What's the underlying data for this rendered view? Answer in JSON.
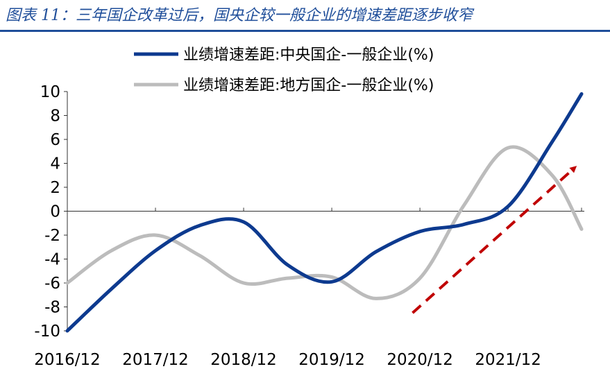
{
  "figure": {
    "title": "图表 11：三年国企改革过后，国央企较一般企业的增速差距逐步收窄"
  },
  "chart_data": {
    "type": "line",
    "title": "图表 11：三年国企改革过后，国央企较一般企业的增速差距逐步收窄",
    "xlabel": "",
    "ylabel": "",
    "x_ticks": [
      "2016/12",
      "2017/12",
      "2018/12",
      "2019/12",
      "2020/12",
      "2021/12"
    ],
    "x_range": [
      "2016/12",
      "2022/10"
    ],
    "ylim": [
      -10,
      10
    ],
    "y_ticks": [
      10,
      8,
      6,
      4,
      2,
      0,
      -2,
      -4,
      -6,
      -8,
      -10
    ],
    "grid": false,
    "legend_position": "top-center",
    "series": [
      {
        "name": "业绩增速差距:中央国企-一般企业(%)",
        "color": "#0d3a8f",
        "points": [
          {
            "x": "2016/12",
            "y": -10.0
          },
          {
            "x": "2017/6",
            "y": -6.5
          },
          {
            "x": "2017/12",
            "y": -3.3
          },
          {
            "x": "2018/6",
            "y": -1.2
          },
          {
            "x": "2018/12",
            "y": -0.9
          },
          {
            "x": "2019/6",
            "y": -4.5
          },
          {
            "x": "2019/12",
            "y": -5.9
          },
          {
            "x": "2020/6",
            "y": -3.4
          },
          {
            "x": "2020/12",
            "y": -1.7
          },
          {
            "x": "2021/6",
            "y": -1.1
          },
          {
            "x": "2021/12",
            "y": 0.4
          },
          {
            "x": "2022/6",
            "y": 5.8
          },
          {
            "x": "2022/10",
            "y": 9.8
          }
        ]
      },
      {
        "name": "业绩增速差距:地方国企-一般企业(%)",
        "color": "#bcbcbc",
        "points": [
          {
            "x": "2016/12",
            "y": -6.0
          },
          {
            "x": "2017/6",
            "y": -3.3
          },
          {
            "x": "2017/12",
            "y": -2.0
          },
          {
            "x": "2018/6",
            "y": -3.7
          },
          {
            "x": "2018/12",
            "y": -6.0
          },
          {
            "x": "2019/6",
            "y": -5.6
          },
          {
            "x": "2019/12",
            "y": -5.5
          },
          {
            "x": "2020/6",
            "y": -7.3
          },
          {
            "x": "2020/12",
            "y": -5.6
          },
          {
            "x": "2021/6",
            "y": 0.5
          },
          {
            "x": "2021/12",
            "y": 5.3
          },
          {
            "x": "2022/6",
            "y": 3.0
          },
          {
            "x": "2022/10",
            "y": -1.5
          }
        ]
      }
    ],
    "annotations": [
      {
        "type": "arrow",
        "style": "dashed",
        "color": "#c00000",
        "from": {
          "x": "2020/11",
          "y": -8.5
        },
        "to": {
          "x": "2022/9",
          "y": 3.6
        }
      }
    ]
  }
}
